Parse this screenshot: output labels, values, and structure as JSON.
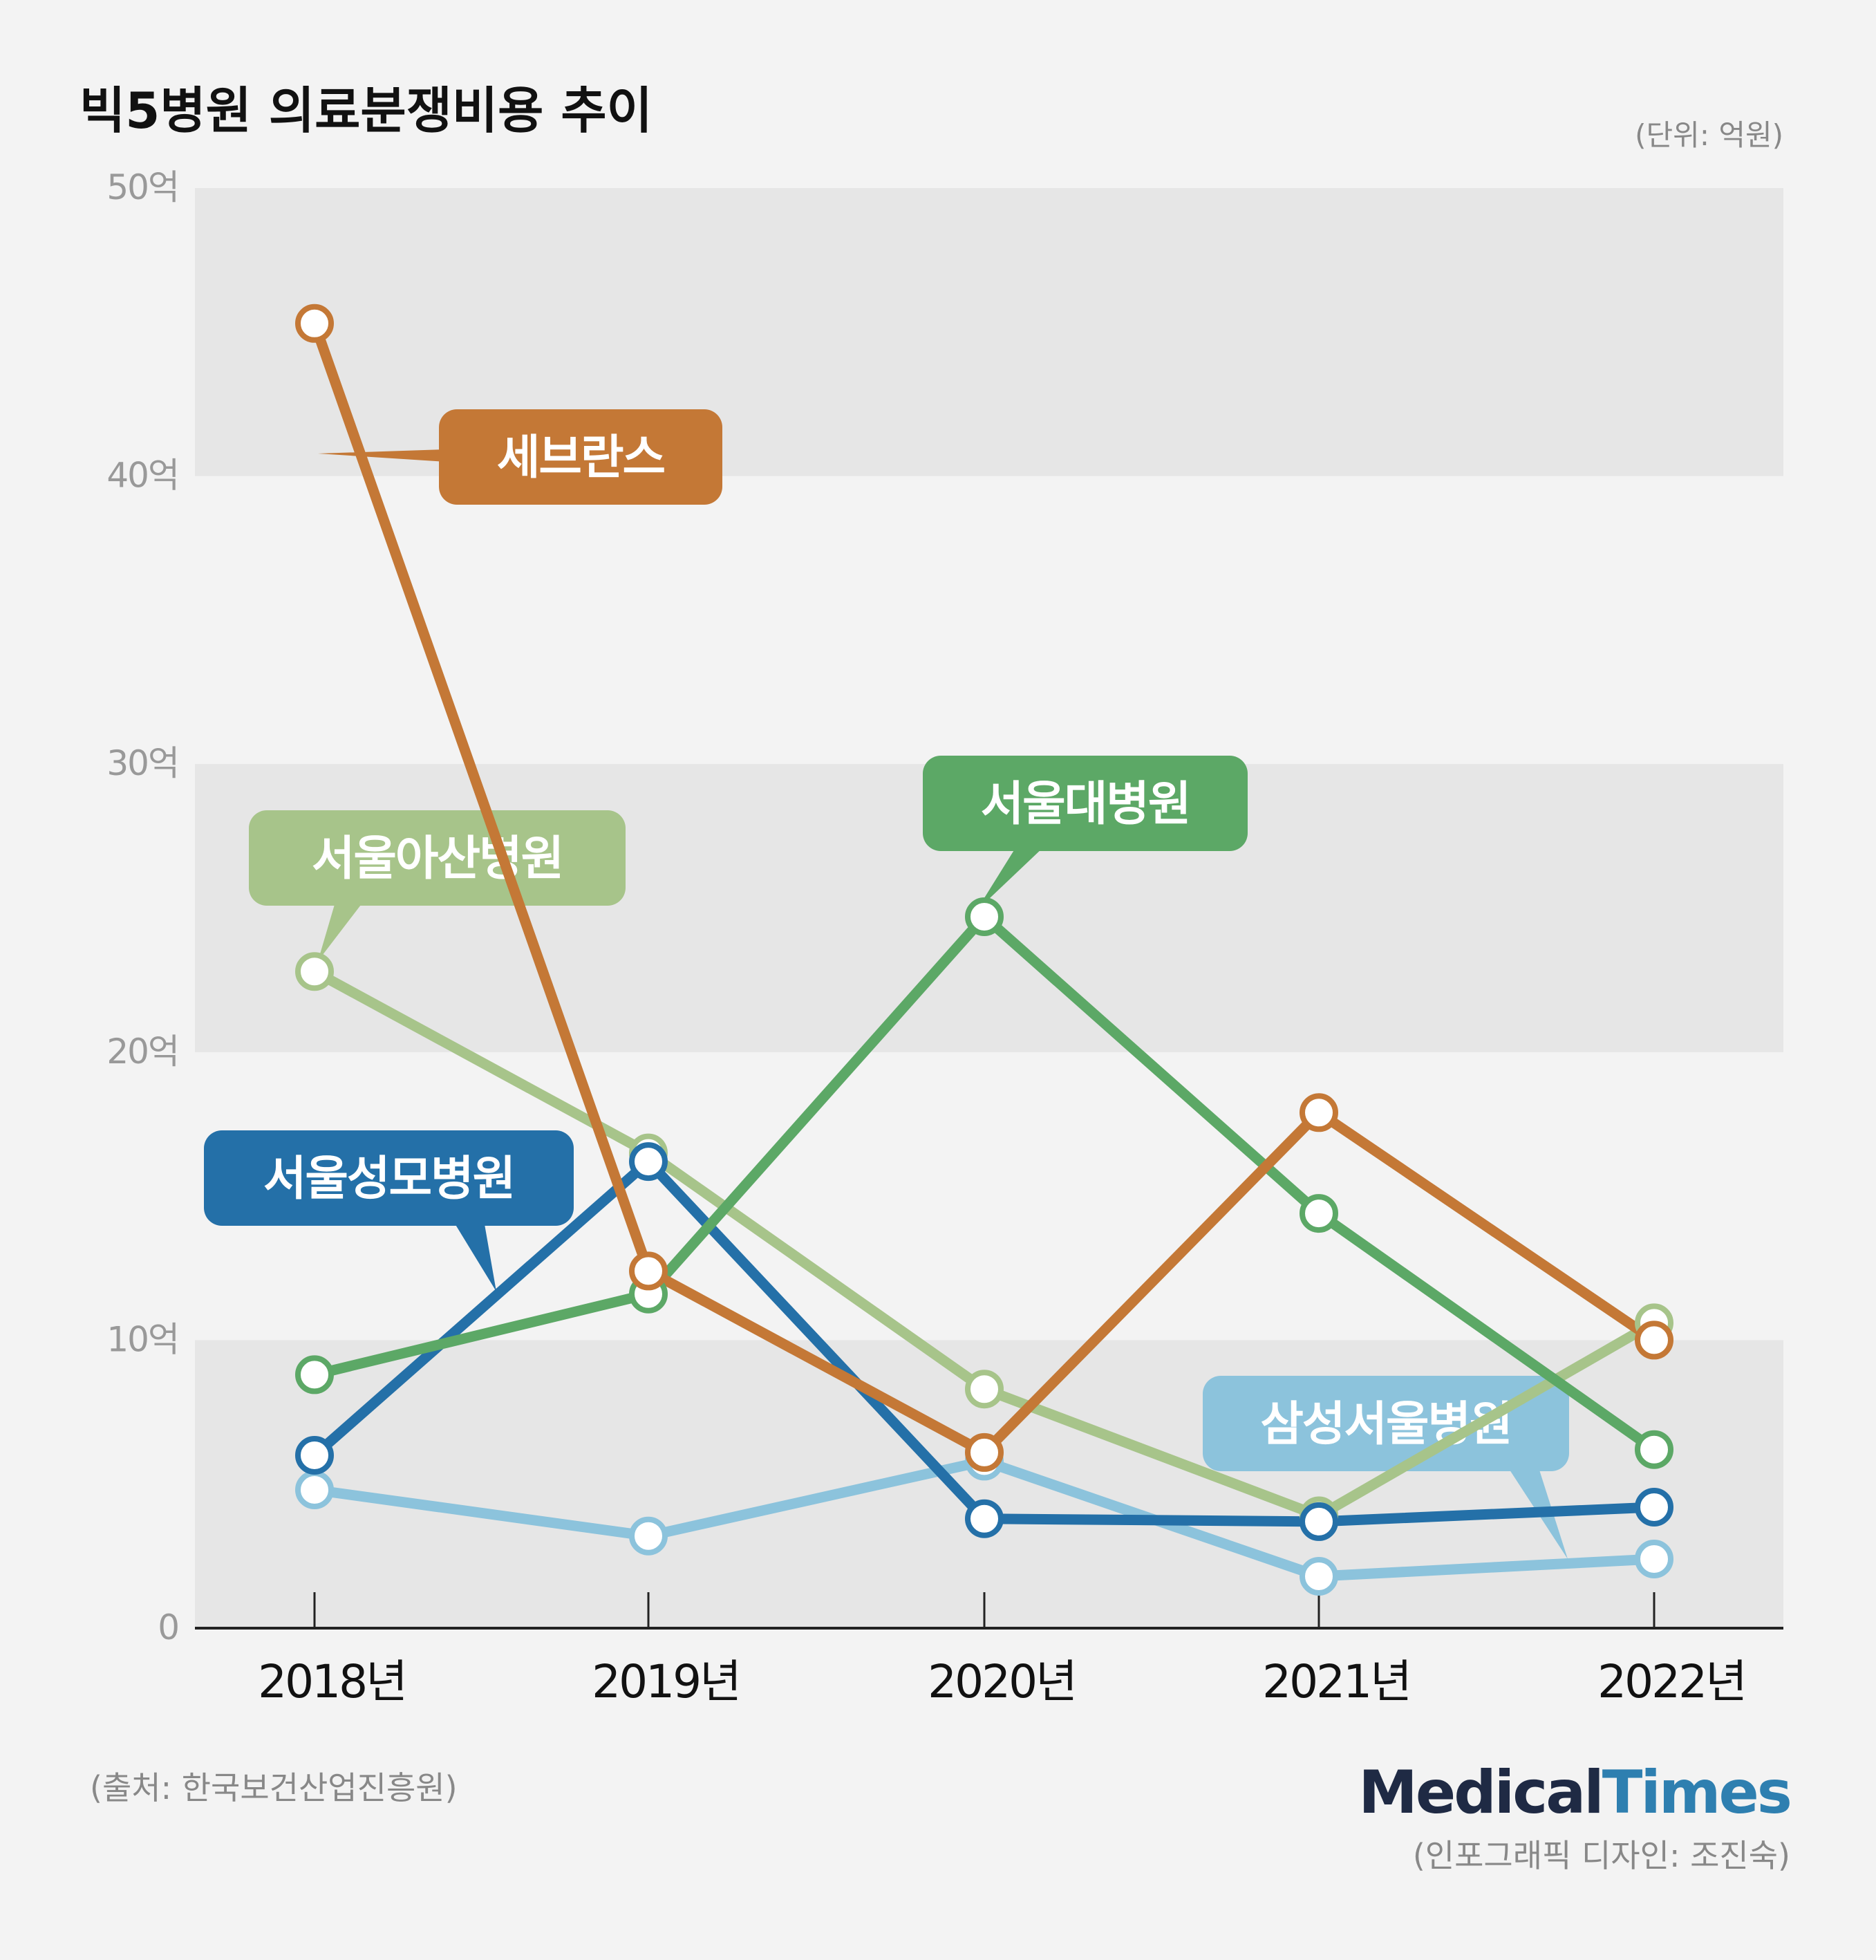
{
  "title": "빅5병원 의료분쟁비용 추이",
  "unit_note": "(단위: 억원)",
  "source": "(출처: 한국보건산업진흥원)",
  "brand": {
    "part1": "Medical",
    "part2": "Times"
  },
  "credit": "(인포그래픽 디자인: 조진숙)",
  "colors": {
    "background": "#f3f3f3",
    "band": "#e6e6e6",
    "axis": "#222222",
    "brand_dark": "#1f2a44",
    "brand_blue": "#2e7fb0"
  },
  "chart_data": {
    "type": "line",
    "title": "빅5병원 의료분쟁비용 추이",
    "xlabel": "",
    "ylabel": "",
    "unit": "억원",
    "categories": [
      "2018년",
      "2019년",
      "2020년",
      "2021년",
      "2022년"
    ],
    "y_ticks": [
      "0",
      "10억",
      "20억",
      "30억",
      "40억",
      "50억"
    ],
    "ylim": [
      0,
      50
    ],
    "grid": "alternating horizontal bands",
    "series": [
      {
        "name": "삼성서울병원",
        "color": "#8cc3dc",
        "values": [
          4.8,
          3.2,
          5.8,
          1.8,
          2.4
        ]
      },
      {
        "name": "서울아산병원",
        "color": "#a7c48a",
        "values": [
          22.8,
          16.5,
          8.3,
          3.9,
          10.6
        ]
      },
      {
        "name": "서울성모병원",
        "color": "#2470a8",
        "values": [
          6.0,
          16.2,
          3.8,
          3.7,
          4.2
        ]
      },
      {
        "name": "서울대병원",
        "color": "#5ca866",
        "values": [
          8.8,
          11.6,
          24.7,
          14.4,
          6.2
        ]
      },
      {
        "name": "세브란스",
        "color": "#c47836",
        "values": [
          45.3,
          12.4,
          6.1,
          17.9,
          10.0
        ]
      }
    ]
  }
}
